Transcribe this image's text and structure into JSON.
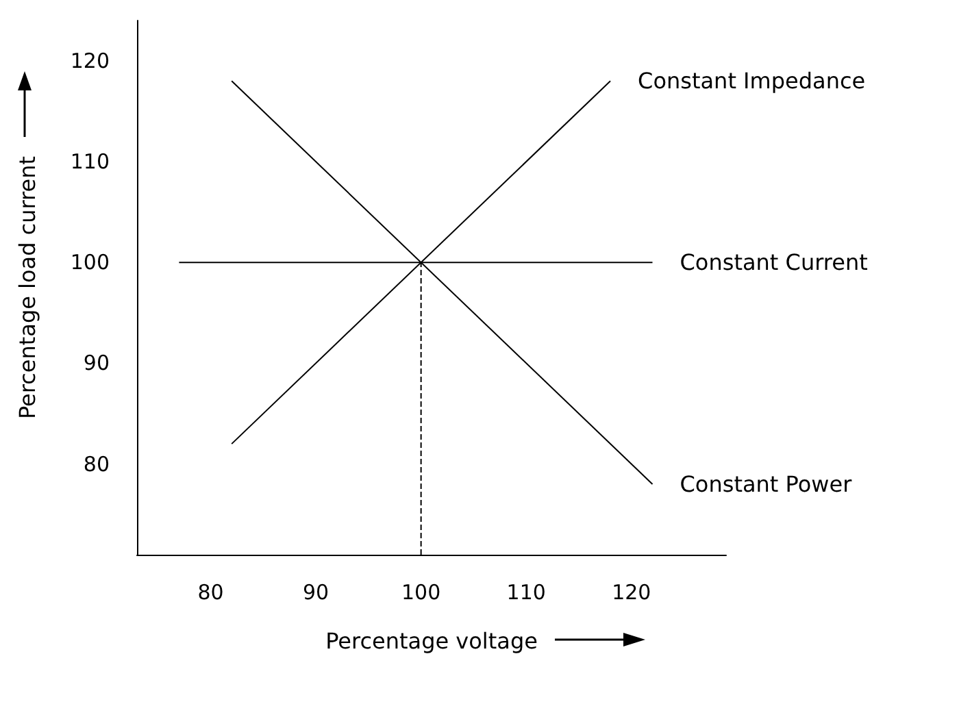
{
  "chart_data": {
    "type": "line",
    "xlabel": "Percentage voltage",
    "ylabel": "Percentage load current",
    "xlim": [
      73,
      129
    ],
    "ylim": [
      71,
      124
    ],
    "xticks": [
      80,
      90,
      100,
      110,
      120
    ],
    "yticks": [
      80,
      90,
      100,
      110,
      120
    ],
    "grid": false,
    "legend": false,
    "marker": "none",
    "line_style": "solid",
    "series": [
      {
        "name": "Constant Impedance",
        "color": "#000000",
        "x": [
          82,
          118
        ],
        "values": [
          82,
          118
        ]
      },
      {
        "name": "Constant Current",
        "color": "#000000",
        "x": [
          77,
          122
        ],
        "values": [
          100,
          100
        ]
      },
      {
        "name": "Constant Power",
        "color": "#000000",
        "x": [
          82,
          122
        ],
        "values": [
          118,
          78
        ]
      },
      {
        "color": "#000000",
        "x": [
          100,
          100
        ],
        "values": [
          71,
          100
        ],
        "line_style": "dashed"
      }
    ]
  }
}
